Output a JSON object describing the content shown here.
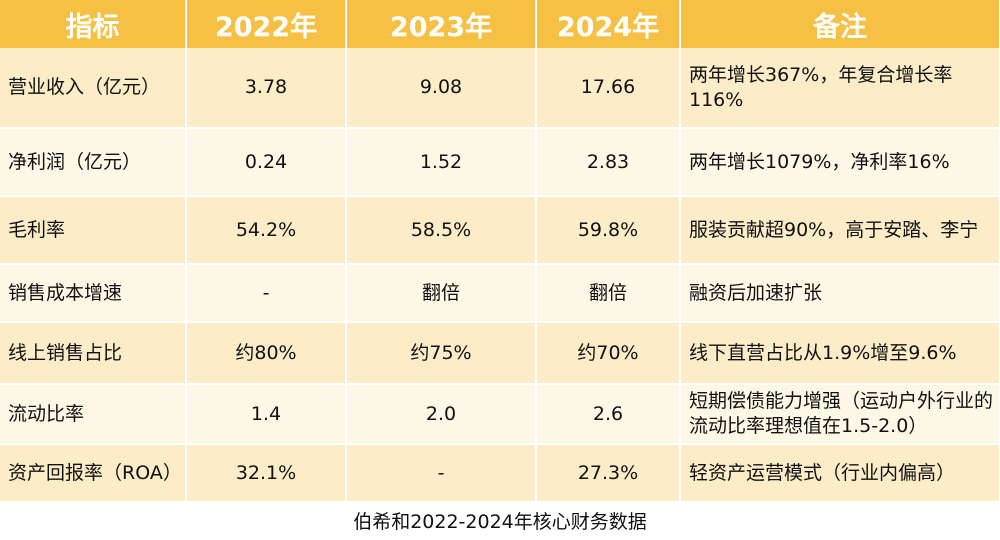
{
  "header": {
    "metric": "指标",
    "y2022": "2022年",
    "y2023": "2023年",
    "y2024": "2024年",
    "note": "备注"
  },
  "rows": [
    {
      "metric": "营业收入（亿元）",
      "y2022": "3.78",
      "y2023": "9.08",
      "y2024": "17.66",
      "note": "两年增长367%，年复合增长率116%"
    },
    {
      "metric": "净利润（亿元）",
      "y2022": "0.24",
      "y2023": "1.52",
      "y2024": "2.83",
      "note": "两年增长1079%，净利率16%"
    },
    {
      "metric": "毛利率",
      "y2022": "54.2%",
      "y2023": "58.5%",
      "y2024": "59.8%",
      "note": "服装贡献超90%，高于安踏、李宁"
    },
    {
      "metric": "销售成本增速",
      "y2022": "-",
      "y2023": "翻倍",
      "y2024": "翻倍",
      "note": "融资后加速扩张"
    },
    {
      "metric": "线上销售占比",
      "y2022": "约80%",
      "y2023": "约75%",
      "y2024": "约70%",
      "note": "线下直营占比从1.9%增至9.6%"
    },
    {
      "metric": "流动比率",
      "y2022": "1.4",
      "y2023": "2.0",
      "y2024": "2.6",
      "note": "短期偿债能力增强（运动户外行业的流动比率理想值在1.5-2.0）"
    },
    {
      "metric": "资产回报率（ROA）",
      "y2022": "32.1%",
      "y2023": "-",
      "y2024": "27.3%",
      "note": "轻资产运营模式（行业内偏高）"
    }
  ],
  "caption": "伯希和2022-2024年核心财务数据"
}
